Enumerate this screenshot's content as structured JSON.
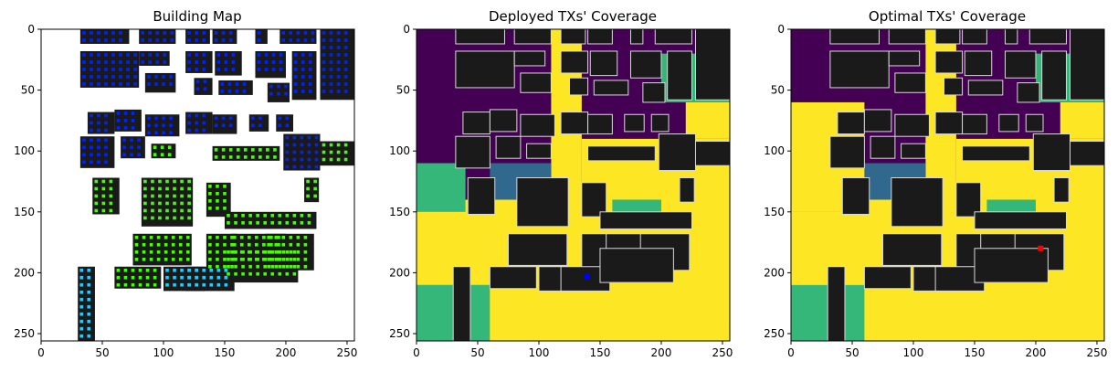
{
  "chart_data": [
    {
      "type": "heatmap",
      "title": "Building Map",
      "xlabel": "",
      "ylabel": "",
      "xlim": [
        0,
        256
      ],
      "ylim": [
        256,
        0
      ],
      "xticks": [
        0,
        50,
        100,
        150,
        200,
        250
      ],
      "yticks": [
        0,
        50,
        100,
        150,
        200,
        250
      ],
      "grid": false,
      "legend": "none",
      "description_layers": "buildings (black) with receiver points colored by coverage"
    },
    {
      "type": "heatmap",
      "title": "Deployed TXs' Coverage",
      "xlabel": "",
      "ylabel": "",
      "xlim": [
        0,
        256
      ],
      "ylim": [
        256,
        0
      ],
      "xticks": [
        0,
        50,
        100,
        150,
        200,
        250
      ],
      "yticks": [
        0,
        50,
        100,
        150,
        200,
        250
      ],
      "grid": false,
      "legend": "none",
      "tx_points": [
        {
          "x": 139,
          "y": 203
        }
      ]
    },
    {
      "type": "heatmap",
      "title": "Optimal TXs' Coverage",
      "xlabel": "",
      "ylabel": "",
      "xlim": [
        0,
        256
      ],
      "ylim": [
        256,
        0
      ],
      "xticks": [
        0,
        50,
        100,
        150,
        200,
        250
      ],
      "yticks": [
        0,
        50,
        100,
        150,
        200,
        250
      ],
      "grid": false,
      "legend": "none",
      "tx_points": [
        {
          "x": 204,
          "y": 180
        }
      ]
    }
  ],
  "colors": {
    "building": "#1a1a1a",
    "building_outline": "#d9d9d9",
    "coverage_none": "#440154",
    "coverage_low": "#31688e",
    "coverage_mid": "#35b779",
    "coverage_high": "#fde725",
    "rx_blue": "#0022ff",
    "rx_cyan": "#22ccff",
    "rx_green": "#44ff00",
    "tx_deployed": "#0000ff",
    "tx_optimal": "#ff0000"
  }
}
